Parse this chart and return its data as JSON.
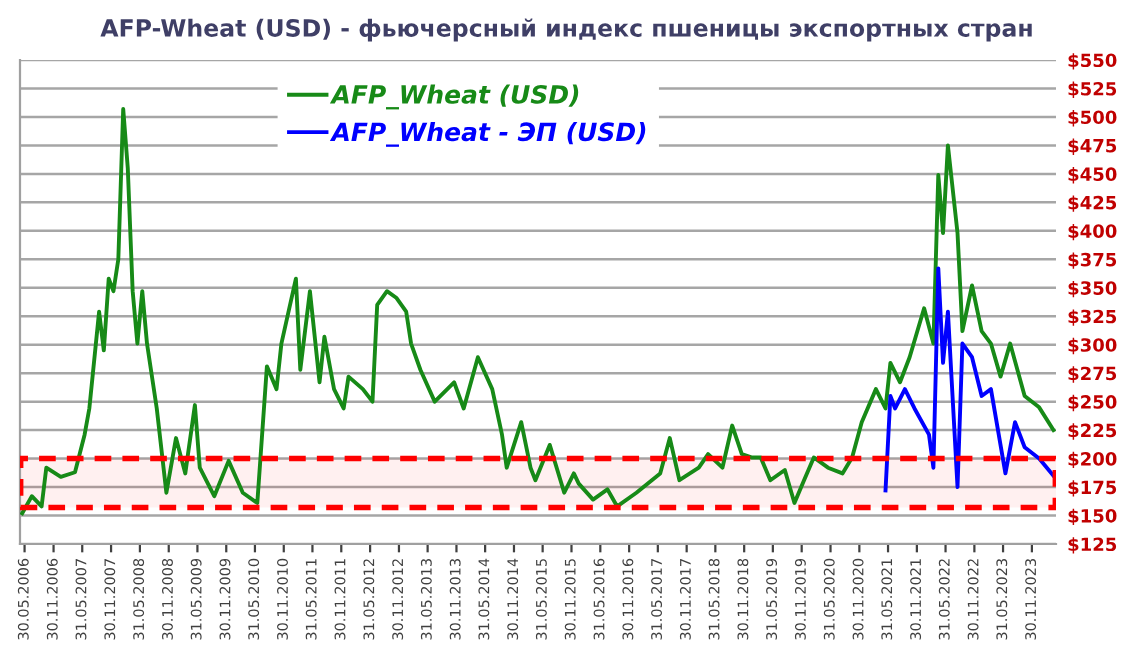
{
  "chart_data": {
    "type": "line",
    "title": "AFP-Wheat (USD) - фьючерсный индекс пшеницы экспортных стран",
    "xlim": [
      "2006-05-01",
      "2024-05-01"
    ],
    "xticks": [
      {
        "value": "2006-05-30",
        "label": "30.05.2006"
      },
      {
        "value": "2006-11-30",
        "label": "30.11.2006"
      },
      {
        "value": "2007-05-31",
        "label": "31.05.2007"
      },
      {
        "value": "2007-11-30",
        "label": "30.11.2007"
      },
      {
        "value": "2008-05-31",
        "label": "31.05.2008"
      },
      {
        "value": "2008-11-30",
        "label": "30.11.2008"
      },
      {
        "value": "2009-05-31",
        "label": "31.05.2009"
      },
      {
        "value": "2009-11-30",
        "label": "30.11.2009"
      },
      {
        "value": "2010-05-31",
        "label": "31.05.2010"
      },
      {
        "value": "2010-11-30",
        "label": "30.11.2010"
      },
      {
        "value": "2011-05-31",
        "label": "31.05.2011"
      },
      {
        "value": "2011-11-30",
        "label": "30.11.2011"
      },
      {
        "value": "2012-05-31",
        "label": "31.05.2012"
      },
      {
        "value": "2012-11-30",
        "label": "30.11.2012"
      },
      {
        "value": "2013-05-31",
        "label": "31.05.2013"
      },
      {
        "value": "2013-11-30",
        "label": "30.11.2013"
      },
      {
        "value": "2014-05-31",
        "label": "31.05.2014"
      },
      {
        "value": "2014-11-30",
        "label": "30.11.2014"
      },
      {
        "value": "2015-05-31",
        "label": "31.05.2015"
      },
      {
        "value": "2015-11-30",
        "label": "30.11.2015"
      },
      {
        "value": "2016-05-31",
        "label": "31.05.2016"
      },
      {
        "value": "2016-11-30",
        "label": "30.11.2016"
      },
      {
        "value": "2017-05-31",
        "label": "31.05.2017"
      },
      {
        "value": "2017-11-30",
        "label": "30.11.2017"
      },
      {
        "value": "2018-05-31",
        "label": "31.05.2018"
      },
      {
        "value": "2018-11-30",
        "label": "30.11.2018"
      },
      {
        "value": "2019-05-31",
        "label": "31.05.2019"
      },
      {
        "value": "2019-11-30",
        "label": "30.11.2019"
      },
      {
        "value": "2020-05-31",
        "label": "31.05.2020"
      },
      {
        "value": "2020-11-30",
        "label": "30.11.2020"
      },
      {
        "value": "2021-05-31",
        "label": "31.05.2021"
      },
      {
        "value": "2021-11-30",
        "label": "30.11.2021"
      },
      {
        "value": "2022-05-31",
        "label": "31.05.2022"
      },
      {
        "value": "2022-11-30",
        "label": "30.11.2022"
      },
      {
        "value": "2023-05-31",
        "label": "31.05.2023"
      },
      {
        "value": "2023-11-30",
        "label": "30.11.2023"
      }
    ],
    "ylim": [
      125,
      550
    ],
    "yticks": [
      {
        "value": 125,
        "label": "$125"
      },
      {
        "value": 150,
        "label": "$150"
      },
      {
        "value": 175,
        "label": "$175"
      },
      {
        "value": 200,
        "label": "$200"
      },
      {
        "value": 225,
        "label": "$225"
      },
      {
        "value": 250,
        "label": "$250"
      },
      {
        "value": 275,
        "label": "$275"
      },
      {
        "value": 300,
        "label": "$300"
      },
      {
        "value": 325,
        "label": "$325"
      },
      {
        "value": 350,
        "label": "$350"
      },
      {
        "value": 375,
        "label": "$375"
      },
      {
        "value": 400,
        "label": "$400"
      },
      {
        "value": 425,
        "label": "$425"
      },
      {
        "value": 450,
        "label": "$450"
      },
      {
        "value": 475,
        "label": "$475"
      },
      {
        "value": 500,
        "label": "$500"
      },
      {
        "value": 525,
        "label": "$525"
      },
      {
        "value": 550,
        "label": "$550"
      }
    ],
    "grid": "y",
    "legend": "top left",
    "line_style": "solid",
    "marker": "none",
    "bands": [
      {
        "axis": "y",
        "from": 157,
        "to": 200,
        "color": "#ff0000"
      }
    ],
    "series": [
      {
        "name": "AFP_Wheat (USD)",
        "color": "#178a17",
        "x": [
          "2006-05",
          "2006-07",
          "2006-09",
          "2006-10",
          "2007-01",
          "2007-04",
          "2007-06",
          "2007-07",
          "2007-09",
          "2007-10",
          "2007-11",
          "2007-12",
          "2008-01",
          "2008-02",
          "2008-03",
          "2008-04",
          "2008-05",
          "2008-06",
          "2008-07",
          "2008-09",
          "2008-11",
          "2009-01",
          "2009-03",
          "2009-05",
          "2009-06",
          "2009-09",
          "2009-12",
          "2010-03",
          "2010-06",
          "2010-08",
          "2010-10",
          "2010-11",
          "2011-02",
          "2011-03",
          "2011-05",
          "2011-07",
          "2011-08",
          "2011-10",
          "2011-12",
          "2012-01",
          "2012-04",
          "2012-06",
          "2012-07",
          "2012-09",
          "2012-11",
          "2013-01",
          "2013-02",
          "2013-04",
          "2013-07",
          "2013-11",
          "2014-01",
          "2014-04",
          "2014-07",
          "2014-09",
          "2014-10",
          "2015-01",
          "2015-03",
          "2015-04",
          "2015-07",
          "2015-10",
          "2015-12",
          "2016-01",
          "2016-04",
          "2016-07",
          "2016-09",
          "2017-01",
          "2017-06",
          "2017-08",
          "2017-10",
          "2018-02",
          "2018-04",
          "2018-07",
          "2018-09",
          "2018-11",
          "2019-01",
          "2019-03",
          "2019-05",
          "2019-08",
          "2019-10",
          "2019-12",
          "2020-02",
          "2020-05",
          "2020-08",
          "2020-10",
          "2020-12",
          "2021-03",
          "2021-05",
          "2021-06",
          "2021-08",
          "2021-10",
          "2022-01",
          "2022-03",
          "2022-04",
          "2022-05",
          "2022-06",
          "2022-08",
          "2022-09",
          "2022-11",
          "2023-01",
          "2023-03",
          "2023-05",
          "2023-07",
          "2023-10",
          "2024-01",
          "2024-04"
        ],
        "values": [
          152,
          167,
          158,
          192,
          184,
          188,
          221,
          244,
          329,
          295,
          358,
          347,
          375,
          507,
          455,
          347,
          301,
          347,
          301,
          244,
          170,
          218,
          187,
          247,
          192,
          167,
          198,
          170,
          161,
          281,
          261,
          301,
          358,
          278,
          347,
          267,
          307,
          261,
          244,
          272,
          261,
          250,
          335,
          347,
          341,
          329,
          301,
          278,
          250,
          267,
          244,
          289,
          261,
          221,
          192,
          232,
          192,
          181,
          212,
          170,
          187,
          178,
          164,
          173,
          158,
          170,
          187,
          218,
          181,
          192,
          204,
          192,
          229,
          204,
          201,
          201,
          181,
          190,
          161,
          181,
          201,
          192,
          187,
          201,
          232,
          261,
          244,
          284,
          267,
          289,
          332,
          301,
          449,
          398,
          475,
          398,
          312,
          352,
          312,
          301,
          272,
          301,
          255,
          245,
          225
        ]
      },
      {
        "name": "AFP_Wheat - ЭП (USD)",
        "color": "#0000ff",
        "x": [
          "2021-05",
          "2021-06",
          "2021-07",
          "2021-09",
          "2021-11",
          "2022-02",
          "2022-03",
          "2022-04",
          "2022-05",
          "2022-06",
          "2022-08",
          "2022-09",
          "2022-11",
          "2023-01",
          "2023-03",
          "2023-06",
          "2023-08",
          "2023-10",
          "2024-01",
          "2024-04"
        ],
        "values": [
          172,
          255,
          244,
          261,
          244,
          221,
          192,
          367,
          284,
          329,
          175,
          301,
          289,
          255,
          261,
          187,
          232,
          210,
          200,
          185
        ]
      }
    ]
  }
}
